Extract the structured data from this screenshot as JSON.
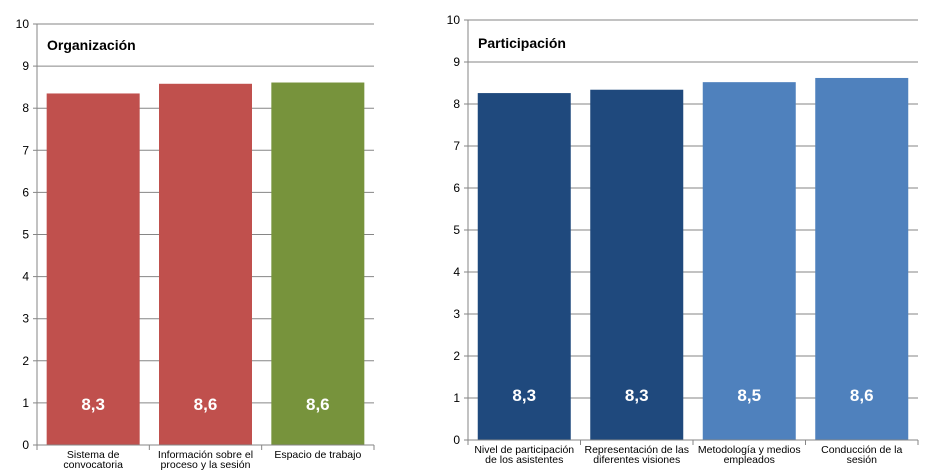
{
  "chart_data": [
    {
      "type": "bar",
      "title": "Organización",
      "xlabel": "",
      "ylabel": "",
      "ylim": [
        0,
        10
      ],
      "yticks": [
        0,
        1,
        2,
        3,
        4,
        5,
        6,
        7,
        8,
        9,
        10
      ],
      "grid": true,
      "legend": "none",
      "categories": [
        [
          "Sistema de",
          "convocatoria"
        ],
        [
          "Información sobre el",
          "proceso y la sesión"
        ],
        [
          "Espacio de trabajo"
        ]
      ],
      "values": [
        8.35,
        8.58,
        8.61
      ],
      "data_labels": [
        "8,3",
        "8,6",
        "8,6"
      ],
      "colors": [
        "#c0504d",
        "#c0504d",
        "#77933c"
      ]
    },
    {
      "type": "bar",
      "title": "Participación",
      "xlabel": "",
      "ylabel": "",
      "ylim": [
        0,
        10
      ],
      "yticks": [
        0,
        1,
        2,
        3,
        4,
        5,
        6,
        7,
        8,
        9,
        10
      ],
      "grid": true,
      "legend": "none",
      "categories": [
        [
          "Nivel de participación",
          "de los asistentes"
        ],
        [
          "Representación de las",
          "diferentes visiones"
        ],
        [
          "Metodología y medios",
          "empleados"
        ],
        [
          "Conducción de la",
          "sesión"
        ]
      ],
      "values": [
        8.26,
        8.34,
        8.52,
        8.62
      ],
      "data_labels": [
        "8,3",
        "8,3",
        "8,5",
        "8,6"
      ],
      "colors": [
        "#1f497d",
        "#1f497d",
        "#4f81bd",
        "#4f81bd"
      ]
    }
  ]
}
